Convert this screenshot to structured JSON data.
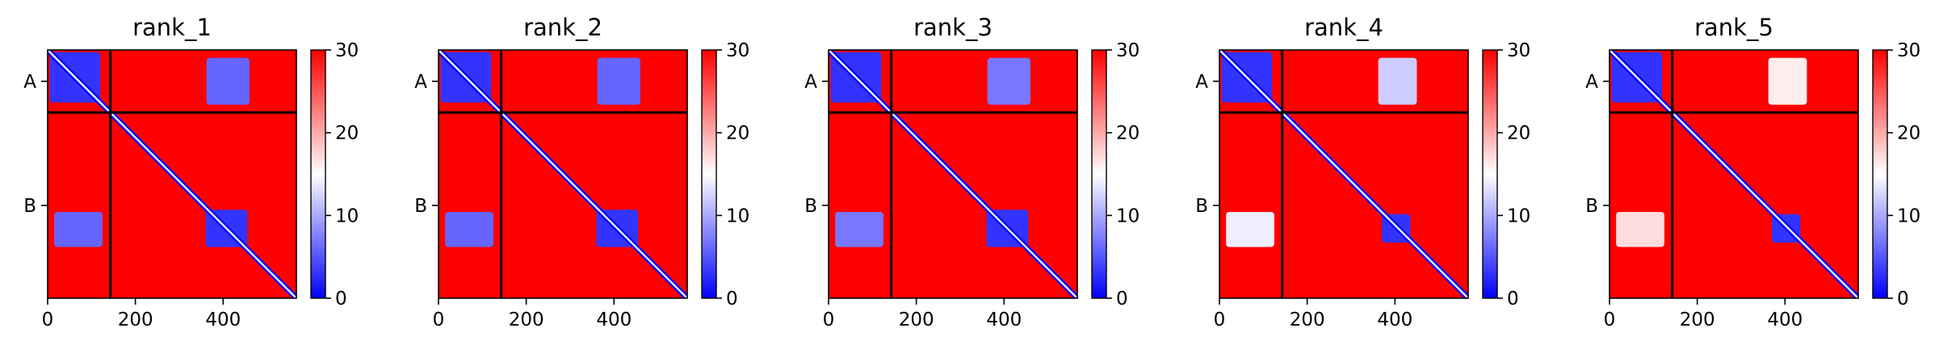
{
  "chart_data": [
    {
      "type": "heatmap",
      "title": "rank_1",
      "xticks": [
        0,
        200,
        400
      ],
      "yticks": [
        "A",
        "B"
      ],
      "xlim": [
        0,
        567
      ],
      "chain_boundary": 143,
      "colorbar": {
        "min": 0,
        "max": 30,
        "ticks": [
          0,
          10,
          20,
          30
        ],
        "colors": [
          "#0000ff",
          "#ffffff",
          "#ff0000"
        ]
      },
      "low_error_blocks": [
        {
          "x": [
            5,
            120
          ],
          "y": [
            5,
            120
          ],
          "value": 3
        },
        {
          "x": [
            362,
            460
          ],
          "y": [
            18,
            125
          ],
          "value": 6
        },
        {
          "x": [
            15,
            125
          ],
          "y": [
            370,
            450
          ],
          "value": 6
        },
        {
          "x": [
            360,
            455
          ],
          "y": [
            365,
            450
          ],
          "value": 3
        }
      ]
    },
    {
      "type": "heatmap",
      "title": "rank_2",
      "xticks": [
        0,
        200,
        400
      ],
      "yticks": [
        "A",
        "B"
      ],
      "xlim": [
        0,
        567
      ],
      "chain_boundary": 143,
      "colorbar": {
        "min": 0,
        "max": 30,
        "ticks": [
          0,
          10,
          20,
          30
        ],
        "colors": [
          "#0000ff",
          "#ffffff",
          "#ff0000"
        ]
      },
      "low_error_blocks": [
        {
          "x": [
            5,
            120
          ],
          "y": [
            5,
            120
          ],
          "value": 3
        },
        {
          "x": [
            362,
            460
          ],
          "y": [
            18,
            125
          ],
          "value": 6
        },
        {
          "x": [
            15,
            125
          ],
          "y": [
            370,
            450
          ],
          "value": 6
        },
        {
          "x": [
            360,
            455
          ],
          "y": [
            365,
            450
          ],
          "value": 3
        }
      ]
    },
    {
      "type": "heatmap",
      "title": "rank_3",
      "xticks": [
        0,
        200,
        400
      ],
      "yticks": [
        "A",
        "B"
      ],
      "xlim": [
        0,
        567
      ],
      "chain_boundary": 143,
      "colorbar": {
        "min": 0,
        "max": 30,
        "ticks": [
          0,
          10,
          20,
          30
        ],
        "colors": [
          "#0000ff",
          "#ffffff",
          "#ff0000"
        ]
      },
      "low_error_blocks": [
        {
          "x": [
            5,
            120
          ],
          "y": [
            5,
            120
          ],
          "value": 3
        },
        {
          "x": [
            362,
            460
          ],
          "y": [
            18,
            125
          ],
          "value": 7
        },
        {
          "x": [
            15,
            125
          ],
          "y": [
            370,
            450
          ],
          "value": 7
        },
        {
          "x": [
            360,
            455
          ],
          "y": [
            365,
            450
          ],
          "value": 3
        }
      ]
    },
    {
      "type": "heatmap",
      "title": "rank_4",
      "xticks": [
        0,
        200,
        400
      ],
      "yticks": [
        "A",
        "B"
      ],
      "xlim": [
        0,
        567
      ],
      "chain_boundary": 143,
      "colorbar": {
        "min": 0,
        "max": 30,
        "ticks": [
          0,
          10,
          20,
          30
        ],
        "colors": [
          "#0000ff",
          "#ffffff",
          "#ff0000"
        ]
      },
      "low_error_blocks": [
        {
          "x": [
            5,
            120
          ],
          "y": [
            5,
            120
          ],
          "value": 3
        },
        {
          "x": [
            362,
            450
          ],
          "y": [
            18,
            125
          ],
          "value": 12
        },
        {
          "x": [
            15,
            125
          ],
          "y": [
            370,
            450
          ],
          "value": 14
        },
        {
          "x": [
            370,
            435
          ],
          "y": [
            375,
            440
          ],
          "value": 3
        }
      ]
    },
    {
      "type": "heatmap",
      "title": "rank_5",
      "xticks": [
        0,
        200,
        400
      ],
      "yticks": [
        "A",
        "B"
      ],
      "xlim": [
        0,
        567
      ],
      "chain_boundary": 143,
      "colorbar": {
        "min": 0,
        "max": 30,
        "ticks": [
          0,
          10,
          20,
          30
        ],
        "colors": [
          "#0000ff",
          "#ffffff",
          "#ff0000"
        ]
      },
      "low_error_blocks": [
        {
          "x": [
            5,
            120
          ],
          "y": [
            5,
            120
          ],
          "value": 3
        },
        {
          "x": [
            362,
            450
          ],
          "y": [
            18,
            125
          ],
          "value": 16
        },
        {
          "x": [
            15,
            125
          ],
          "y": [
            370,
            450
          ],
          "value": 17
        },
        {
          "x": [
            370,
            435
          ],
          "y": [
            375,
            440
          ],
          "value": 3
        }
      ]
    }
  ]
}
